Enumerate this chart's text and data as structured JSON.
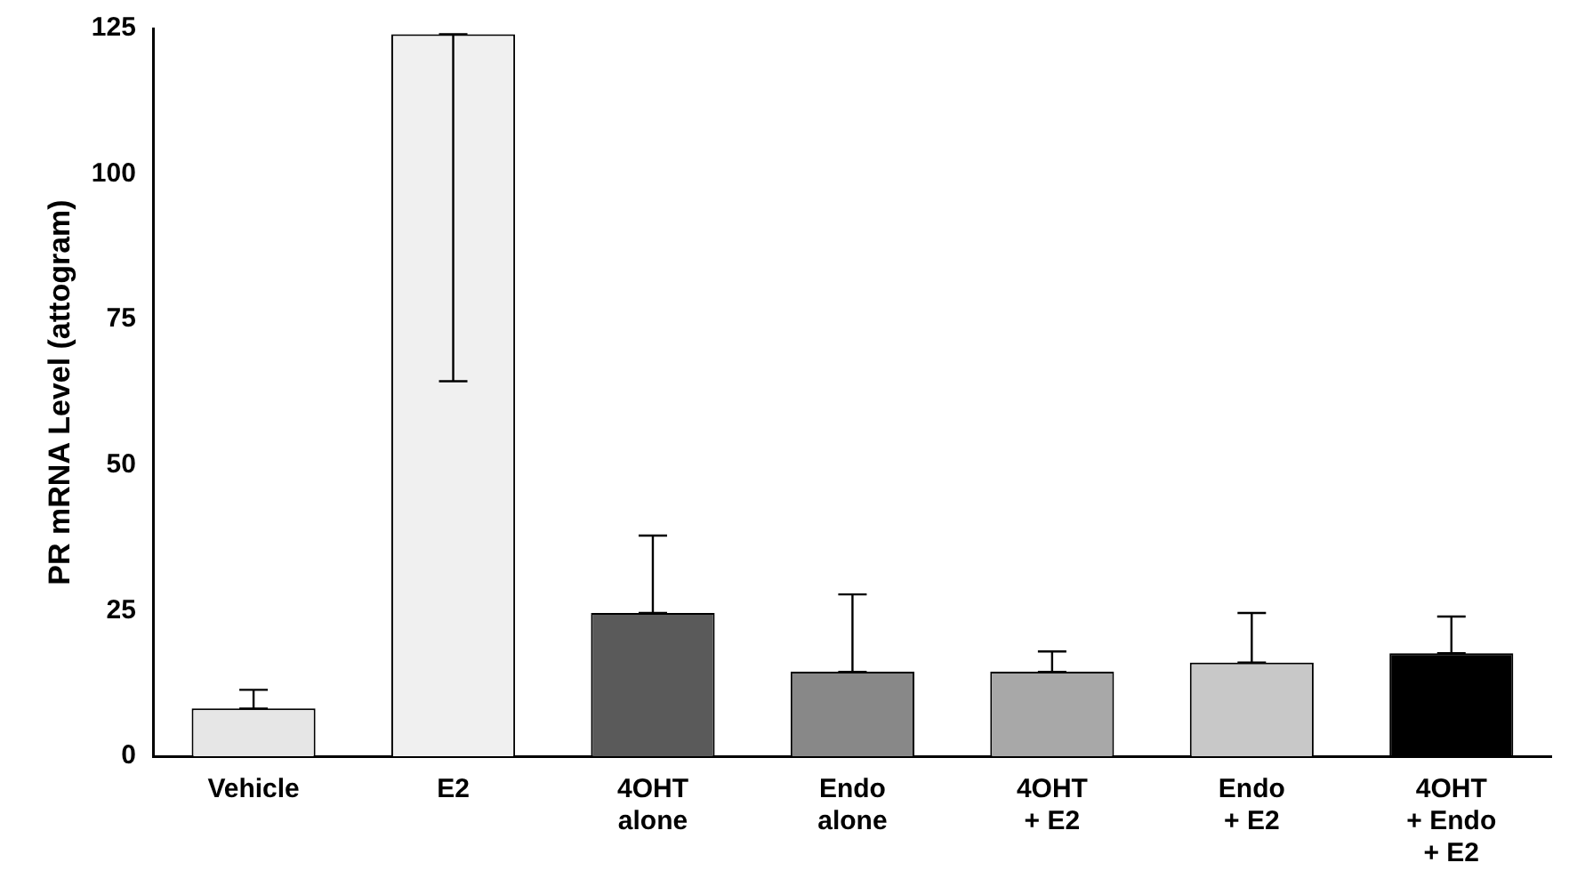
{
  "chart_data": {
    "type": "bar",
    "ylabel": "PR mRNA Level (attogram)",
    "categories": [
      "Vehicle",
      "E2",
      "4OHT\nalone",
      "Endo\nalone",
      "4OHT\n+ E2",
      "Endo\n+ E2",
      "4OHT\n+ Endo\n+ E2"
    ],
    "values": [
      8.2,
      124,
      24.6,
      14.5,
      14.5,
      16.1,
      17.7
    ],
    "colors": [
      "#e6e6e6",
      "#f0f0f0",
      "#5a5a5a",
      "#888888",
      "#a8a8a8",
      "#c8c8c8",
      "#000000"
    ],
    "errors": [
      [
        8.2,
        11.4
      ],
      [
        64.4,
        124
      ],
      [
        24.6,
        37.9
      ],
      [
        14.5,
        27.8
      ],
      [
        14.5,
        18
      ],
      [
        16.1,
        24.6
      ],
      [
        17.7,
        24
      ]
    ],
    "ylim": [
      0,
      125
    ],
    "yticks": [
      0,
      25,
      50,
      75,
      100,
      125
    ],
    "grid": false,
    "legend": false
  }
}
